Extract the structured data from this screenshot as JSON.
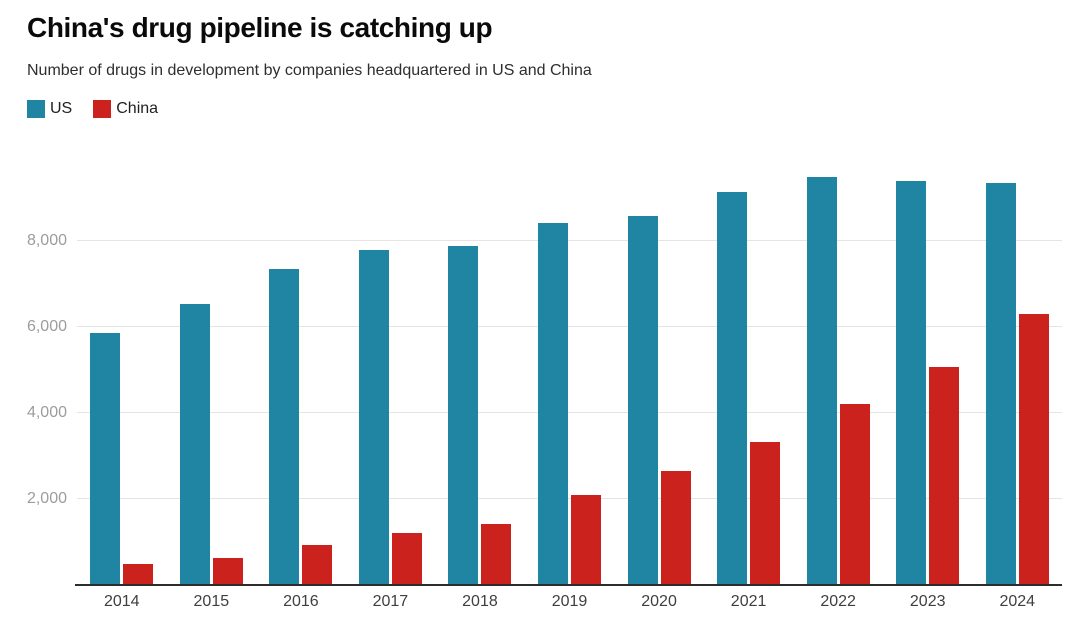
{
  "chart_data": {
    "type": "bar",
    "title": "China's drug pipeline is catching up",
    "subtitle": "Number of drugs in development by companies headquartered in US and China",
    "categories": [
      "2014",
      "2015",
      "2016",
      "2017",
      "2018",
      "2019",
      "2020",
      "2021",
      "2022",
      "2023",
      "2024"
    ],
    "series": [
      {
        "name": "US",
        "color": "#1f85a3",
        "values": [
          5860,
          6540,
          7350,
          7790,
          7890,
          8430,
          8590,
          9150,
          9490,
          9390,
          9350
        ]
      },
      {
        "name": "China",
        "color": "#cb221e",
        "values": [
          500,
          630,
          940,
          1200,
          1430,
          2100,
          2650,
          3320,
          4210,
          5060,
          6300
        ]
      }
    ],
    "xlabel": "",
    "ylabel": "",
    "ylim": [
      0,
      10000
    ],
    "yticks": [
      {
        "value": 2000,
        "label": "2,000"
      },
      {
        "value": 4000,
        "label": "4,000"
      },
      {
        "value": 6000,
        "label": "6,000"
      },
      {
        "value": 8000,
        "label": "8,000"
      }
    ],
    "grid": true,
    "legend_position": "top-left"
  },
  "style_colors": {
    "gridline": "#e4e4e4",
    "axis_line": "#2d2d2d",
    "y_tick_text": "#9c9c9c",
    "x_tick_text": "#3f3f3f"
  }
}
